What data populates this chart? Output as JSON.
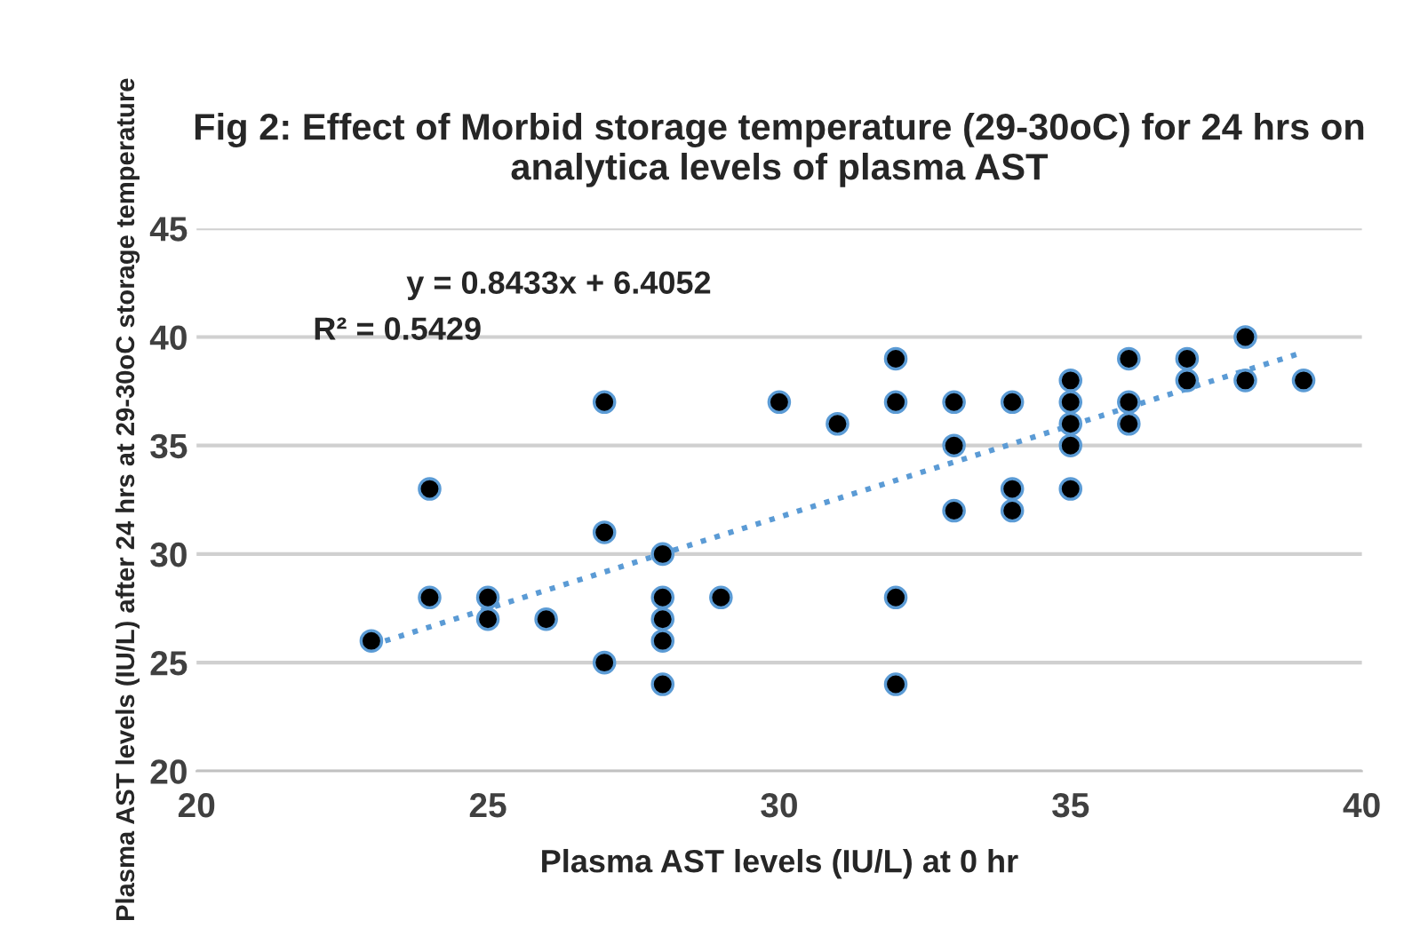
{
  "chart_data": {
    "type": "scatter",
    "title": "Fig 2: Effect of Morbid storage temperature (29-30oC) for 24 hrs on analytica levels of plasma AST",
    "xlabel": "Plasma AST levels (IU/L) at 0 hr",
    "ylabel": "Plasma AST levels (IU/L) after 24 hrs at 29-30oC storage temperature",
    "annotations": [
      "y = 0.8433x + 6.4052",
      "R² = 0.5429"
    ],
    "xlim": [
      20,
      40
    ],
    "xticks": [
      20,
      25,
      30,
      35,
      40
    ],
    "ylim": [
      20,
      45
    ],
    "yticks": [
      20,
      25,
      30,
      35,
      40,
      45
    ],
    "grid": "y",
    "legend": false,
    "marker": "circle",
    "series": [
      {
        "color": "#000000",
        "x": [
          23,
          24,
          24,
          25,
          25,
          26,
          27,
          27,
          27,
          28,
          28,
          28,
          28,
          28,
          29,
          30,
          31,
          32,
          32,
          32,
          32,
          33,
          33,
          33,
          34,
          34,
          34,
          35,
          35,
          35,
          35,
          35,
          36,
          36,
          36,
          37,
          37,
          38,
          38,
          39
        ],
        "values": [
          26,
          33,
          28,
          28,
          27,
          27,
          37,
          31,
          25,
          30,
          28,
          27,
          26,
          24,
          28,
          37,
          36,
          39,
          37,
          28,
          24,
          37,
          35,
          32,
          37,
          33,
          32,
          38,
          37,
          36,
          35,
          33,
          39,
          37,
          36,
          39,
          38,
          40,
          38,
          38
        ]
      },
      {
        "type": "line",
        "color": "#5b9bd5",
        "line_style": "dotted",
        "marker": "none",
        "x": [
          23,
          39
        ],
        "values": [
          25.8,
          39.3
        ]
      }
    ]
  }
}
